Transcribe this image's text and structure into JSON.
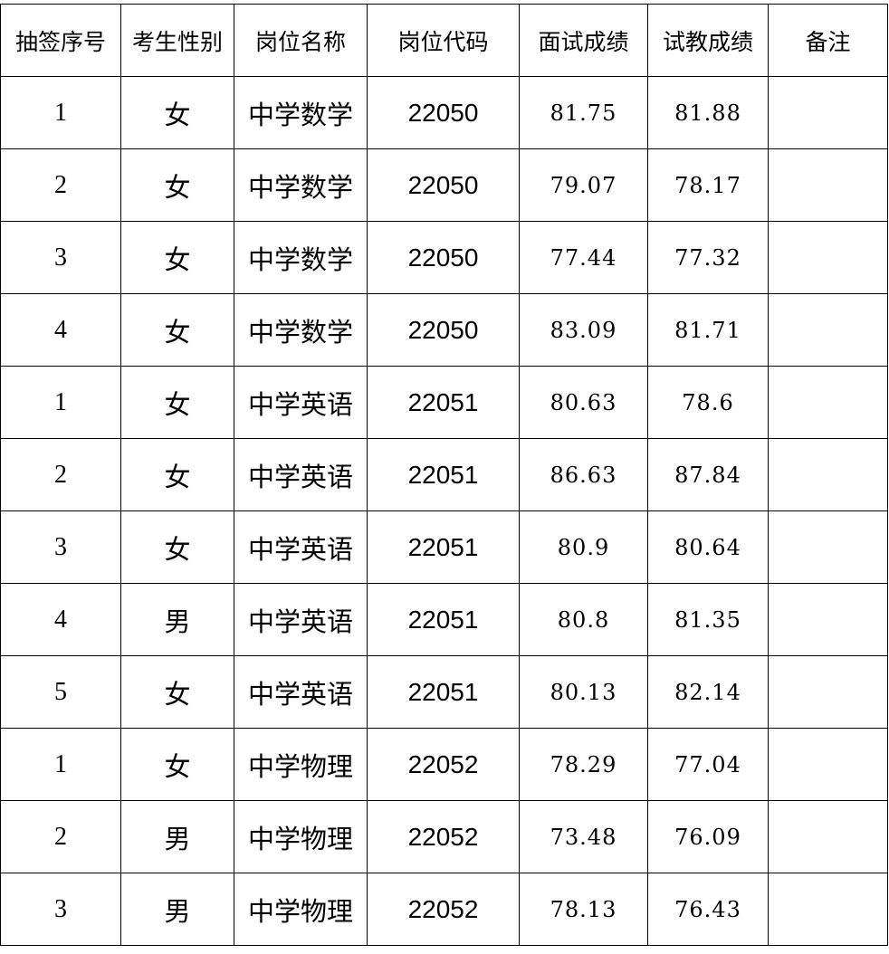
{
  "table": {
    "headers": [
      "抽签序号",
      "考生性别",
      "岗位名称",
      "岗位代码",
      "面试成绩",
      "试教成绩",
      "备注"
    ],
    "rows": [
      [
        "1",
        "女",
        "中学数学",
        "22050",
        "81.75",
        "81.88",
        ""
      ],
      [
        "2",
        "女",
        "中学数学",
        "22050",
        "79.07",
        "78.17",
        ""
      ],
      [
        "3",
        "女",
        "中学数学",
        "22050",
        "77.44",
        "77.32",
        ""
      ],
      [
        "4",
        "女",
        "中学数学",
        "22050",
        "83.09",
        "81.71",
        ""
      ],
      [
        "1",
        "女",
        "中学英语",
        "22051",
        "80.63",
        "78.6",
        ""
      ],
      [
        "2",
        "女",
        "中学英语",
        "22051",
        "86.63",
        "87.84",
        ""
      ],
      [
        "3",
        "女",
        "中学英语",
        "22051",
        "80.9",
        "80.64",
        ""
      ],
      [
        "4",
        "男",
        "中学英语",
        "22051",
        "80.8",
        "81.35",
        ""
      ],
      [
        "5",
        "女",
        "中学英语",
        "22051",
        "80.13",
        "82.14",
        ""
      ],
      [
        "1",
        "女",
        "中学物理",
        "22052",
        "78.29",
        "77.04",
        ""
      ],
      [
        "2",
        "男",
        "中学物理",
        "22052",
        "73.48",
        "76.09",
        ""
      ],
      [
        "3",
        "男",
        "中学物理",
        "22052",
        "78.13",
        "76.43",
        ""
      ]
    ]
  }
}
